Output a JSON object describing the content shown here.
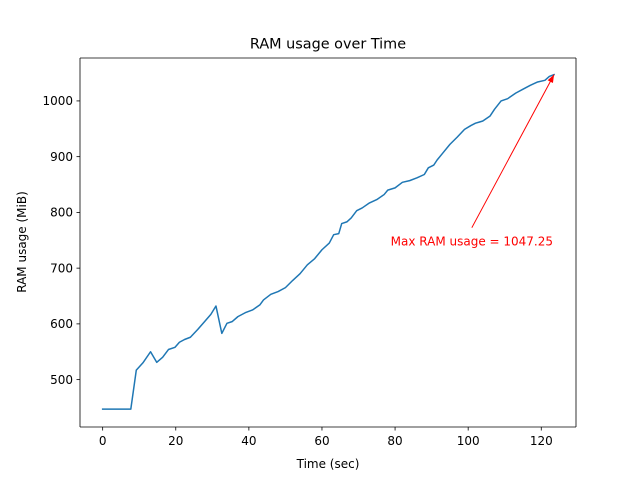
{
  "colors": {
    "line": "#1f77b4",
    "annotation": "#ff0000",
    "axes": "#000000",
    "background": "#ffffff"
  },
  "chart_data": {
    "type": "line",
    "title": "RAM usage over Time",
    "xlabel": "Time (sec)",
    "ylabel": "RAM usage (MiB)",
    "xlim": [
      -6.2,
      129.5
    ],
    "ylim": [
      415,
      1077
    ],
    "xticks": [
      0,
      20,
      40,
      60,
      80,
      100,
      120
    ],
    "yticks": [
      500,
      600,
      700,
      800,
      900,
      1000
    ],
    "grid": false,
    "legend": "none",
    "series": [
      {
        "color": "#1f77b4",
        "x": [
          0,
          2,
          4,
          6,
          7.7,
          9.2,
          11,
          13.1,
          14.8,
          16.4,
          18,
          19.8,
          21,
          22.4,
          24,
          26,
          28,
          29.6,
          31,
          32.6,
          34,
          35.4,
          37,
          39,
          41,
          43,
          44,
          46,
          48,
          50,
          52,
          54,
          56,
          58,
          60,
          62,
          63.2,
          64.6,
          65.4,
          66.8,
          68,
          69.5,
          71,
          73,
          75,
          77,
          78,
          80,
          82,
          84,
          86,
          88,
          89.1,
          90.6,
          91.5,
          93,
          95,
          97,
          99,
          100.8,
          102,
          103,
          104,
          106,
          107.2,
          109,
          110.8,
          113,
          115,
          117,
          119,
          121,
          122.2,
          123.5
        ],
        "y": [
          447,
          447,
          447,
          447,
          447,
          517,
          530,
          550,
          531,
          540,
          554,
          558,
          567,
          572,
          576,
          590,
          605,
          617,
          632,
          583,
          601,
          604,
          613,
          620,
          625,
          634,
          643,
          653,
          658,
          665,
          678,
          690,
          706,
          717,
          733,
          745,
          760,
          762,
          780,
          783,
          790,
          803,
          808,
          817,
          823,
          832,
          840,
          844,
          854,
          857,
          862,
          868,
          880,
          885,
          894,
          906,
          922,
          935,
          949,
          956,
          960,
          962,
          964,
          973,
          985,
          1000,
          1004,
          1014,
          1021,
          1028,
          1034,
          1037,
          1044,
          1047.25
        ]
      }
    ],
    "annotations": [
      {
        "text": "Max RAM usage = 1047.25",
        "xy": [
          123.5,
          1047.25
        ],
        "xytext": [
          101,
          760
        ],
        "color": "#ff0000",
        "arrow": true
      }
    ]
  }
}
